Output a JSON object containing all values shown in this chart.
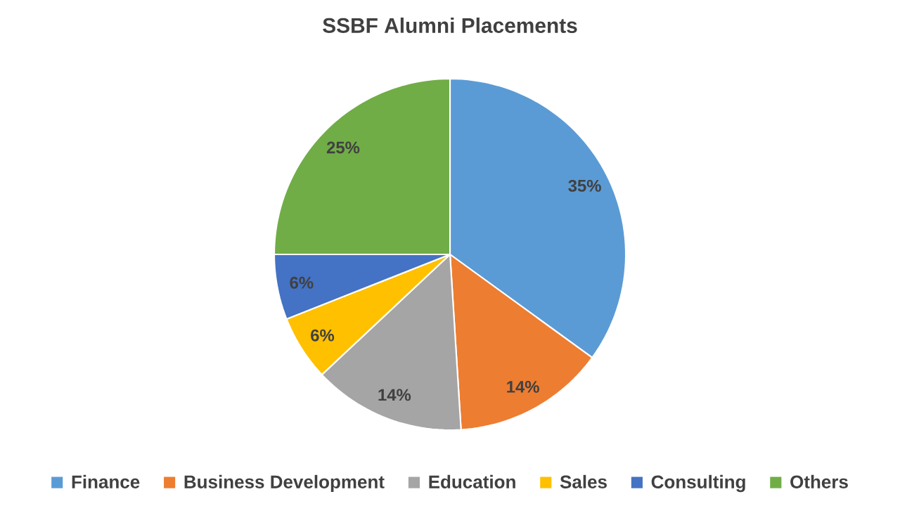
{
  "chart_data": {
    "type": "pie",
    "title": "SSBF Alumni Placements",
    "categories": [
      "Finance",
      "Business Development",
      "Education",
      "Sales",
      "Consulting",
      "Others"
    ],
    "values": [
      35,
      14,
      14,
      6,
      6,
      25
    ],
    "value_labels": [
      "35%",
      "14%",
      "14%",
      "6%",
      "6%",
      "25%"
    ],
    "colors": [
      "#5b9bd5",
      "#ed7d31",
      "#a5a5a5",
      "#ffc000",
      "#4472c4",
      "#70ad47"
    ],
    "legend": "bottom"
  }
}
